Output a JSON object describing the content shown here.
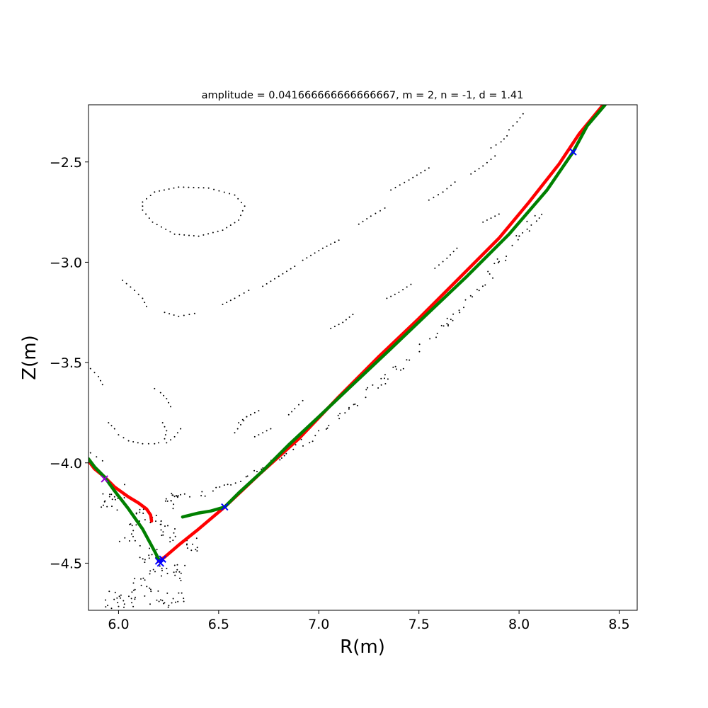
{
  "chart_data": {
    "type": "scatter",
    "title": "amplitude = 0.041666666666666667, m = 2, n = -1, d = 1.41",
    "xlabel": "R(m)",
    "ylabel": "Z(m)",
    "xlim": [
      5.85,
      8.59
    ],
    "ylim": [
      -4.735,
      -2.215
    ],
    "xticks": [
      6.0,
      6.5,
      7.0,
      7.5,
      8.0,
      8.5
    ],
    "xtick_labels": [
      "6.0",
      "6.5",
      "7.0",
      "7.5",
      "8.0",
      "8.5"
    ],
    "yticks": [
      -2.5,
      -3.0,
      -3.5,
      -4.0,
      -4.5
    ],
    "ytick_labels": [
      "−2.5",
      "−3.0",
      "−3.5",
      "−4.0",
      "−4.5"
    ],
    "grid": false,
    "colors": {
      "poincare_points": "#000000",
      "red_manifold": "#ff0000",
      "green_manifold": "#008000",
      "x_point_blue": "#0000ff",
      "x_point_purple": "#9400d3"
    },
    "series": [
      {
        "kind": "points",
        "color": "#000000",
        "groups": [
          {
            "shape": "closed_curve",
            "points": [
              [
                6.12,
                -2.7
              ],
              [
                6.18,
                -2.65
              ],
              [
                6.3,
                -2.625
              ],
              [
                6.45,
                -2.63
              ],
              [
                6.58,
                -2.665
              ],
              [
                6.63,
                -2.72
              ],
              [
                6.6,
                -2.79
              ],
              [
                6.52,
                -2.84
              ],
              [
                6.4,
                -2.87
              ],
              [
                6.28,
                -2.86
              ],
              [
                6.17,
                -2.8
              ],
              [
                6.12,
                -2.74
              ]
            ]
          },
          {
            "shape": "curve",
            "points": [
              [
                6.02,
                -3.09
              ],
              [
                6.08,
                -3.14
              ],
              [
                6.12,
                -3.18
              ],
              [
                6.14,
                -3.22
              ]
            ]
          },
          {
            "shape": "curve",
            "points": [
              [
                6.23,
                -3.25
              ],
              [
                6.3,
                -3.27
              ],
              [
                6.38,
                -3.255
              ]
            ]
          },
          {
            "shape": "curve",
            "points": [
              [
                6.52,
                -3.21
              ],
              [
                6.58,
                -3.18
              ],
              [
                6.65,
                -3.14
              ]
            ]
          },
          {
            "shape": "curve",
            "points": [
              [
                6.72,
                -3.12
              ],
              [
                6.8,
                -3.07
              ],
              [
                6.88,
                -3.02
              ]
            ]
          },
          {
            "shape": "curve",
            "points": [
              [
                6.92,
                -2.99
              ],
              [
                7.02,
                -2.93
              ],
              [
                7.1,
                -2.89
              ]
            ]
          },
          {
            "shape": "curve",
            "points": [
              [
                7.2,
                -2.81
              ],
              [
                7.26,
                -2.77
              ],
              [
                7.33,
                -2.73
              ]
            ]
          },
          {
            "shape": "curve",
            "points": [
              [
                7.36,
                -2.64
              ],
              [
                7.45,
                -2.59
              ],
              [
                7.55,
                -2.53
              ]
            ]
          },
          {
            "shape": "curve",
            "points": [
              [
                7.55,
                -2.69
              ],
              [
                7.62,
                -2.65
              ],
              [
                7.68,
                -2.6
              ]
            ]
          },
          {
            "shape": "curve",
            "points": [
              [
                7.76,
                -2.56
              ],
              [
                7.82,
                -2.52
              ],
              [
                7.88,
                -2.47
              ]
            ]
          },
          {
            "shape": "curve",
            "points": [
              [
                7.95,
                -2.34
              ],
              [
                7.99,
                -2.3
              ],
              [
                8.02,
                -2.26
              ]
            ]
          },
          {
            "shape": "curve",
            "points": [
              [
                7.86,
                -2.43
              ],
              [
                7.91,
                -2.4
              ],
              [
                7.94,
                -2.37
              ]
            ]
          },
          {
            "shape": "curve",
            "points": [
              [
                7.82,
                -2.8
              ],
              [
                7.86,
                -2.78
              ],
              [
                7.9,
                -2.76
              ]
            ]
          },
          {
            "shape": "curve",
            "points": [
              [
                7.58,
                -3.03
              ],
              [
                7.64,
                -2.98
              ],
              [
                7.69,
                -2.93
              ]
            ]
          },
          {
            "shape": "curve",
            "points": [
              [
                7.34,
                -3.18
              ],
              [
                7.4,
                -3.15
              ],
              [
                7.46,
                -3.11
              ]
            ]
          },
          {
            "shape": "curve",
            "points": [
              [
                7.06,
                -3.33
              ],
              [
                7.12,
                -3.3
              ],
              [
                7.17,
                -3.26
              ]
            ]
          },
          {
            "shape": "curve",
            "points": [
              [
                6.85,
                -3.76
              ],
              [
                6.88,
                -3.73
              ],
              [
                6.92,
                -3.69
              ]
            ]
          },
          {
            "shape": "curve",
            "points": [
              [
                6.6,
                -3.8
              ],
              [
                6.64,
                -3.77
              ],
              [
                6.7,
                -3.74
              ]
            ]
          },
          {
            "shape": "curve",
            "points": [
              [
                5.95,
                -3.8
              ],
              [
                5.98,
                -3.83
              ],
              [
                6.0,
                -3.86
              ],
              [
                6.05,
                -3.89
              ],
              [
                6.12,
                -3.905
              ],
              [
                6.18,
                -3.905
              ]
            ]
          },
          {
            "shape": "curve",
            "points": [
              [
                6.2,
                -3.9
              ],
              [
                6.23,
                -3.88
              ],
              [
                6.24,
                -3.84
              ],
              [
                6.22,
                -3.8
              ]
            ]
          },
          {
            "shape": "curve",
            "points": [
              [
                6.18,
                -3.63
              ],
              [
                6.21,
                -3.65
              ],
              [
                6.24,
                -3.68
              ],
              [
                6.26,
                -3.72
              ]
            ]
          },
          {
            "shape": "curve",
            "points": [
              [
                6.24,
                -3.9
              ],
              [
                6.28,
                -3.87
              ],
              [
                6.31,
                -3.83
              ]
            ]
          },
          {
            "shape": "curve",
            "points": [
              [
                6.58,
                -3.85
              ],
              [
                6.61,
                -3.81
              ],
              [
                6.64,
                -3.77
              ]
            ]
          },
          {
            "shape": "curve",
            "points": [
              [
                6.68,
                -3.87
              ],
              [
                6.72,
                -3.85
              ],
              [
                6.76,
                -3.83
              ]
            ]
          },
          {
            "shape": "curve",
            "points": [
              [
                5.86,
                -3.53
              ],
              [
                5.9,
                -3.57
              ],
              [
                5.92,
                -3.61
              ]
            ]
          },
          {
            "shape": "curve",
            "points": [
              [
                5.86,
                -3.95
              ],
              [
                5.89,
                -3.97
              ],
              [
                5.92,
                -3.99
              ]
            ]
          },
          {
            "shape": "band",
            "points": [
              [
                6.25,
                -4.16
              ],
              [
                6.45,
                -4.15
              ],
              [
                6.7,
                -4.05
              ],
              [
                7.0,
                -3.85
              ],
              [
                7.25,
                -3.65
              ],
              [
                7.45,
                -3.48
              ],
              [
                7.7,
                -3.24
              ],
              [
                7.95,
                -2.95
              ],
              [
                8.1,
                -2.75
              ]
            ]
          },
          {
            "shape": "cloud",
            "points": [
              [
                6.0,
                -4.15
              ],
              [
                6.1,
                -4.25
              ],
              [
                6.2,
                -4.3
              ],
              [
                6.25,
                -4.35
              ],
              [
                6.15,
                -4.45
              ],
              [
                6.2,
                -4.52
              ],
              [
                6.3,
                -4.55
              ],
              [
                6.1,
                -4.62
              ],
              [
                6.2,
                -4.66
              ],
              [
                6.28,
                -4.68
              ],
              [
                5.98,
                -4.68
              ],
              [
                6.05,
                -4.7
              ],
              [
                6.35,
                -4.4
              ],
              [
                6.05,
                -4.35
              ],
              [
                6.28,
                -4.2
              ],
              [
                5.95,
                -4.2
              ]
            ]
          }
        ]
      },
      {
        "kind": "manifold",
        "color": "#ff0000",
        "segments": [
          [
            [
              8.42,
              -2.215
            ],
            [
              8.3,
              -2.36
            ],
            [
              8.2,
              -2.51
            ],
            [
              8.05,
              -2.7
            ],
            [
              7.9,
              -2.88
            ],
            [
              7.7,
              -3.08
            ],
            [
              7.5,
              -3.28
            ],
            [
              7.3,
              -3.47
            ],
            [
              7.1,
              -3.67
            ],
            [
              6.9,
              -3.88
            ],
            [
              6.7,
              -4.06
            ],
            [
              6.53,
              -4.22
            ],
            [
              6.4,
              -4.33
            ],
            [
              6.3,
              -4.41
            ],
            [
              6.23,
              -4.47
            ],
            [
              6.2,
              -4.49
            ]
          ],
          [
            [
              5.85,
              -3.99
            ],
            [
              5.88,
              -4.03
            ],
            [
              5.93,
              -4.07
            ],
            [
              5.98,
              -4.12
            ],
            [
              6.05,
              -4.17
            ],
            [
              6.1,
              -4.2
            ],
            [
              6.14,
              -4.23
            ],
            [
              6.16,
              -4.26
            ],
            [
              6.165,
              -4.29
            ]
          ]
        ]
      },
      {
        "kind": "manifold",
        "color": "#008000",
        "segments": [
          [
            [
              8.43,
              -2.215
            ],
            [
              8.34,
              -2.32
            ],
            [
              8.27,
              -2.45
            ],
            [
              8.14,
              -2.64
            ],
            [
              7.95,
              -2.86
            ],
            [
              7.74,
              -3.07
            ],
            [
              7.55,
              -3.25
            ],
            [
              7.35,
              -3.44
            ],
            [
              7.18,
              -3.6
            ],
            [
              7.0,
              -3.77
            ],
            [
              6.85,
              -3.91
            ],
            [
              6.72,
              -4.04
            ],
            [
              6.6,
              -4.15
            ],
            [
              6.53,
              -4.22
            ],
            [
              6.46,
              -4.24
            ],
            [
              6.4,
              -4.25
            ],
            [
              6.32,
              -4.27
            ]
          ],
          [
            [
              5.85,
              -3.98
            ],
            [
              5.88,
              -4.02
            ],
            [
              5.93,
              -4.07
            ],
            [
              5.98,
              -4.14
            ],
            [
              6.05,
              -4.23
            ],
            [
              6.12,
              -4.33
            ],
            [
              6.18,
              -4.44
            ],
            [
              6.2,
              -4.48
            ]
          ]
        ]
      },
      {
        "kind": "x_markers",
        "points": [
          {
            "R": 8.27,
            "Z": -2.45,
            "color": "#0000ff"
          },
          {
            "R": 6.53,
            "Z": -4.22,
            "color": "#0000ff"
          },
          {
            "R": 6.2,
            "Z": -4.49,
            "color": "#0000ff"
          },
          {
            "R": 6.22,
            "Z": -4.48,
            "color": "#0000ff"
          },
          {
            "R": 6.21,
            "Z": -4.5,
            "color": "#0000ff"
          },
          {
            "R": 5.93,
            "Z": -4.08,
            "color": "#9400d3"
          }
        ]
      }
    ]
  }
}
